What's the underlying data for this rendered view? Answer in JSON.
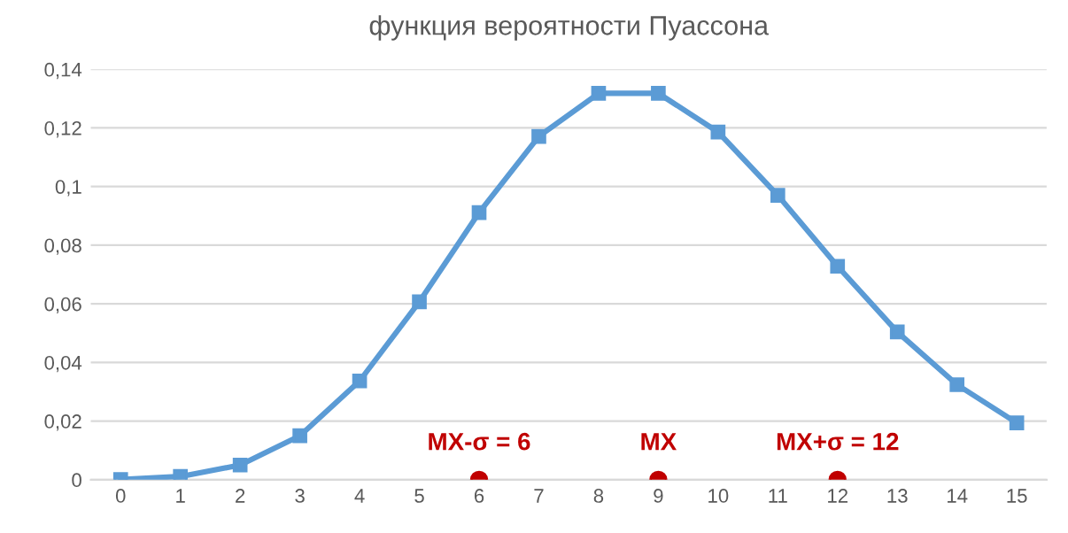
{
  "chart_data": {
    "type": "line",
    "title": "функция вероятности Пуассона",
    "categories": [
      "0",
      "1",
      "2",
      "3",
      "4",
      "5",
      "6",
      "7",
      "8",
      "9",
      "10",
      "11",
      "12",
      "13",
      "14",
      "15"
    ],
    "series": [
      {
        "color": "#5b9bd5",
        "marker": "square",
        "values": [
          0.0001,
          0.0011,
          0.005,
          0.015,
          0.0337,
          0.0607,
          0.0911,
          0.1171,
          0.1318,
          0.1318,
          0.1186,
          0.097,
          0.0728,
          0.0504,
          0.0324,
          0.0194
        ]
      },
      {
        "type": "scatter",
        "color": "#c00000",
        "marker": "circle",
        "x": [
          "6",
          "9",
          "12"
        ],
        "values": [
          0,
          0,
          0
        ]
      }
    ],
    "annotations": [
      {
        "text": "MX-σ = 6",
        "x": "6",
        "y": 0
      },
      {
        "text": "MX",
        "x": "9",
        "y": 0
      },
      {
        "text": "MX+σ = 12",
        "x": "12",
        "y": 0
      }
    ],
    "ylim": [
      0,
      0.14
    ],
    "yticks": [
      0,
      {
        "value": 0.02,
        "label": "0,02"
      },
      {
        "value": 0.04,
        "label": "0,04"
      },
      {
        "value": 0.06,
        "label": "0,06"
      },
      {
        "value": 0.08,
        "label": "0,08"
      },
      {
        "value": 0.1,
        "label": "0,1"
      },
      {
        "value": 0.12,
        "label": "0,12"
      },
      {
        "value": 0.14,
        "label": "0,14"
      }
    ],
    "grid": "y",
    "legend": false
  }
}
